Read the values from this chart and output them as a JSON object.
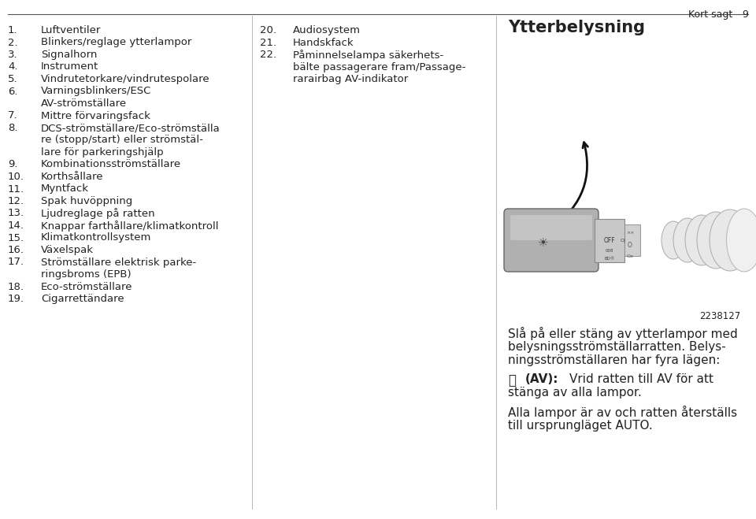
{
  "bg_color": "#ffffff",
  "text_color": "#222222",
  "page_width": 9.6,
  "page_height": 6.59,
  "col1_items": [
    {
      "num": "1.",
      "lines": [
        "Luftventiler"
      ]
    },
    {
      "num": "2.",
      "lines": [
        "Blinkers/reglage ytterlampor"
      ]
    },
    {
      "num": "3.",
      "lines": [
        "Signalhorn"
      ]
    },
    {
      "num": "4.",
      "lines": [
        "Instrument"
      ]
    },
    {
      "num": "5.",
      "lines": [
        "Vindrutetorkare/vindrutespolare"
      ]
    },
    {
      "num": "6.",
      "lines": [
        "Varningsblinkers/ESC",
        "AV-strömställare"
      ]
    },
    {
      "num": "7.",
      "lines": [
        "Mittre förvaringsfack"
      ]
    },
    {
      "num": "8.",
      "lines": [
        "DCS-strömställare/Eco-strömställa",
        "re (stopp/start) eller strömstäl-",
        "lare för parkeringshjälp"
      ]
    },
    {
      "num": "9.",
      "lines": [
        "Kombinationsströmställare"
      ]
    },
    {
      "num": "10.",
      "lines": [
        "Korthsållare"
      ]
    },
    {
      "num": "11.",
      "lines": [
        "Myntfack"
      ]
    },
    {
      "num": "12.",
      "lines": [
        "Spak huvöppning"
      ]
    },
    {
      "num": "13.",
      "lines": [
        "Ljudreglage på ratten"
      ]
    },
    {
      "num": "14.",
      "lines": [
        "Knappar farthållare/klimatkontroll"
      ]
    },
    {
      "num": "15.",
      "lines": [
        "Klimatkontrollsystem"
      ]
    },
    {
      "num": "16.",
      "lines": [
        "Växelspak"
      ]
    },
    {
      "num": "17.",
      "lines": [
        "Strömställare elektrisk parke-",
        "ringsbroms (EPB)"
      ]
    },
    {
      "num": "18.",
      "lines": [
        "Eco-strömställare"
      ]
    },
    {
      "num": "19.",
      "lines": [
        "Cigarrettändare"
      ]
    }
  ],
  "col2_items": [
    {
      "num": "20.",
      "lines": [
        "Audiosystem"
      ]
    },
    {
      "num": "21.",
      "lines": [
        "Handskfack"
      ]
    },
    {
      "num": "22.",
      "lines": [
        "Påminnelselampa säkerhets-",
        "bälte passagerare fram/Passage-",
        "rarairbag AV-indikator"
      ]
    }
  ],
  "col3_header": "Ytterbelysning",
  "page_header_text": "Kort sagt",
  "page_number": "9",
  "image_number": "2238127",
  "body_para1_lines": [
    "Slå på eller stäng av ytterlampor med",
    "belysningsströmställarratten. Belys-",
    "ningsströmställaren har fyra lägen:"
  ],
  "body_av_symbol": "⏽",
  "body_av_bold": "(AV):",
  "body_av_rest": "Vrid ratten till AV för att",
  "body_av_line2": "stänga av alla lampor.",
  "body_para3_lines": [
    "Alla lampor är av och ratten återställs",
    "till ursprungläget AUTO."
  ],
  "font_size_list": 9.5,
  "font_size_header_page": 9.0,
  "font_size_body": 11.0,
  "font_size_col3_header": 15.0,
  "sep_line_color": "#999999",
  "top_rule_color": "#555555"
}
